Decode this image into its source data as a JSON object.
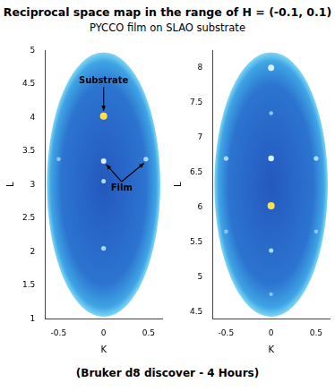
{
  "title": "Reciprocal space map in the range of H = (-0.1, 0.1)",
  "subtitle": "PYCCO film on SLAO substrate",
  "caption": "(Bruker d8 discover - 4 Hours)",
  "chart_data": [
    {
      "type": "scatter",
      "xlabel": "K",
      "ylabel": "L",
      "grid": false,
      "xlim": [
        -0.65,
        0.65
      ],
      "xticks": [
        -0.5,
        0,
        0.5
      ],
      "ylim": [
        1,
        5
      ],
      "yticks": [
        1,
        1.5,
        2,
        2.5,
        3,
        3.5,
        4,
        4.5,
        5
      ],
      "points": {
        "x": [
          0,
          0,
          0.47,
          -0.5,
          0,
          0
        ],
        "y": [
          4.02,
          3.35,
          3.38,
          3.38,
          3.05,
          2.05
        ],
        "intensity": [
          100,
          60,
          45,
          35,
          40,
          45
        ]
      },
      "annotations": [
        {
          "text": "Substrate",
          "x": 0,
          "y": 4.55,
          "targets": [
            [
              0,
              4.1
            ]
          ]
        },
        {
          "text": "Film",
          "x": 0.2,
          "y": 2.95,
          "targets": [
            [
              0.03,
              3.3
            ],
            [
              0.45,
              3.32
            ]
          ]
        }
      ]
    },
    {
      "type": "scatter",
      "xlabel": "K",
      "ylabel": "L",
      "grid": false,
      "xlim": [
        -0.65,
        0.65
      ],
      "xticks": [
        -0.5,
        0,
        0.5
      ],
      "ylim": [
        4.4,
        8.25
      ],
      "yticks": [
        4.5,
        5,
        5.5,
        6,
        6.5,
        7,
        7.5,
        8
      ],
      "points": {
        "x": [
          0,
          0,
          0,
          -0.5,
          0.5,
          0,
          -0.5,
          0.5,
          0,
          0
        ],
        "y": [
          8.0,
          6.7,
          6.02,
          6.7,
          6.7,
          5.38,
          5.65,
          5.65,
          7.35,
          4.75
        ],
        "intensity": [
          80,
          70,
          100,
          45,
          45,
          40,
          30,
          30,
          30,
          25
        ]
      },
      "annotations": []
    }
  ]
}
